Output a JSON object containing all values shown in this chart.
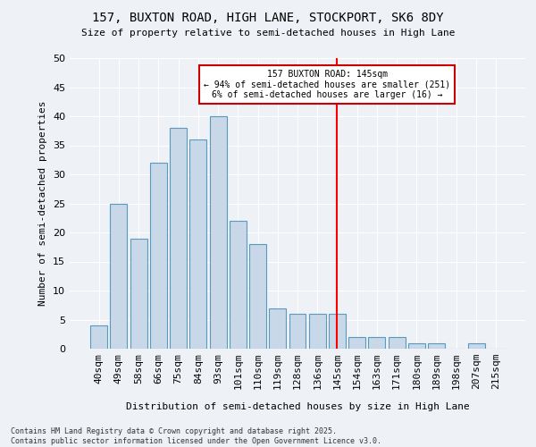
{
  "title1": "157, BUXTON ROAD, HIGH LANE, STOCKPORT, SK6 8DY",
  "title2": "Size of property relative to semi-detached houses in High Lane",
  "xlabel": "Distribution of semi-detached houses by size in High Lane",
  "ylabel": "Number of semi-detached properties",
  "bin_labels": [
    "40sqm",
    "49sqm",
    "58sqm",
    "66sqm",
    "75sqm",
    "84sqm",
    "93sqm",
    "101sqm",
    "110sqm",
    "119sqm",
    "128sqm",
    "136sqm",
    "145sqm",
    "154sqm",
    "163sqm",
    "171sqm",
    "180sqm",
    "189sqm",
    "198sqm",
    "207sqm",
    "215sqm"
  ],
  "bin_values": [
    4,
    25,
    19,
    32,
    38,
    36,
    40,
    22,
    18,
    7,
    6,
    6,
    6,
    2,
    2,
    2,
    1,
    1,
    0,
    1,
    0
  ],
  "bar_color": "#c8d8e8",
  "bar_edge_color": "#5a9abf",
  "reference_line_x": 12,
  "annotation_title": "157 BUXTON ROAD: 145sqm",
  "annotation_line1": "← 94% of semi-detached houses are smaller (251)",
  "annotation_line2": "6% of semi-detached houses are larger (16) →",
  "annotation_box_edge": "#cc0000",
  "footer_line1": "Contains HM Land Registry data © Crown copyright and database right 2025.",
  "footer_line2": "Contains public sector information licensed under the Open Government Licence v3.0.",
  "ylim": [
    0,
    50
  ],
  "bg_color": "#eef2f7"
}
